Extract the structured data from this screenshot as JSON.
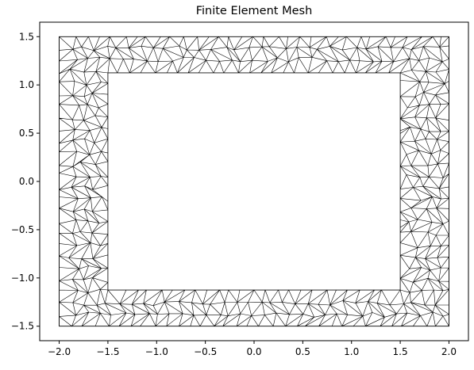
{
  "chart_data": {
    "type": "mesh",
    "title": "Finite Element Mesh",
    "xlabel": "",
    "ylabel": "",
    "xlim": [
      -2.2,
      2.2
    ],
    "ylim": [
      -1.65,
      1.65
    ],
    "xticks": [
      -2.0,
      -1.5,
      -1.0,
      -0.5,
      0.0,
      0.5,
      1.0,
      1.5,
      2.0
    ],
    "yticks": [
      -1.5,
      -1.0,
      -0.5,
      0.0,
      0.5,
      1.0,
      1.5
    ],
    "xtick_labels": [
      "−2.0",
      "−1.5",
      "−1.0",
      "−0.5",
      "0.0",
      "0.5",
      "1.0",
      "1.5",
      "2.0"
    ],
    "ytick_labels": [
      "−1.5",
      "−1.0",
      "−0.5",
      "0.0",
      "0.5",
      "1.0",
      "1.5"
    ],
    "grid": false,
    "domain": {
      "outer_rectangle": {
        "x": [
          -2.0,
          2.0
        ],
        "y": [
          -1.5,
          1.5
        ]
      },
      "inner_hole": {
        "x": [
          -1.5,
          1.5
        ],
        "y": [
          -1.125,
          1.125
        ]
      }
    },
    "element_type": "triangle",
    "element_size": 0.12,
    "line_color": "#000000"
  }
}
